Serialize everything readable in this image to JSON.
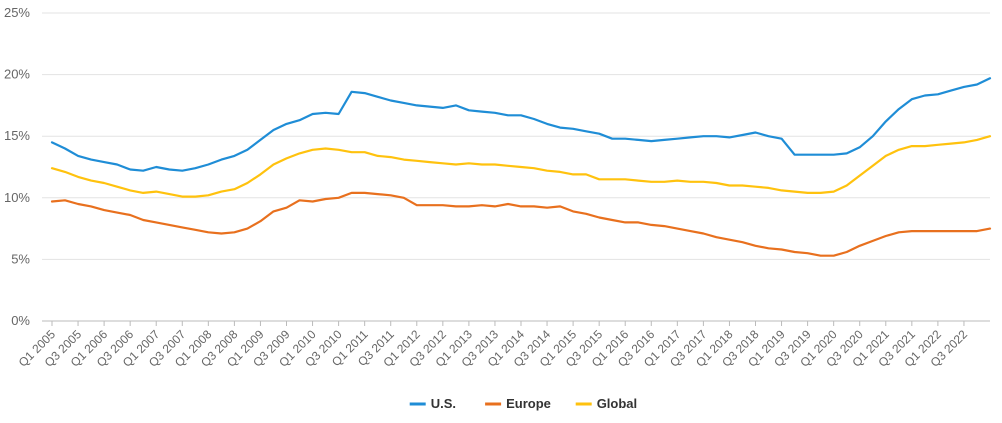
{
  "chart_data": {
    "type": "line",
    "title": "",
    "xlabel": "",
    "ylabel": "",
    "ylim": [
      0,
      25
    ],
    "y_ticks": [
      "0%",
      "5%",
      "10%",
      "15%",
      "20%",
      "25%"
    ],
    "grid": "horizontal",
    "legend_position": "bottom",
    "x": [
      "Q1 2005",
      "Q2 2005",
      "Q3 2005",
      "Q4 2005",
      "Q1 2006",
      "Q2 2006",
      "Q3 2006",
      "Q4 2006",
      "Q1 2007",
      "Q2 2007",
      "Q3 2007",
      "Q4 2007",
      "Q1 2008",
      "Q2 2008",
      "Q3 2008",
      "Q4 2008",
      "Q1 2009",
      "Q2 2009",
      "Q3 2009",
      "Q4 2009",
      "Q1 2010",
      "Q2 2010",
      "Q3 2010",
      "Q4 2010",
      "Q1 2011",
      "Q2 2011",
      "Q3 2011",
      "Q4 2011",
      "Q1 2012",
      "Q2 2012",
      "Q3 2012",
      "Q4 2012",
      "Q1 2013",
      "Q2 2013",
      "Q3 2013",
      "Q4 2013",
      "Q1 2014",
      "Q2 2014",
      "Q3 2014",
      "Q4 2014",
      "Q1 2015",
      "Q2 2015",
      "Q3 2015",
      "Q4 2015",
      "Q1 2016",
      "Q2 2016",
      "Q3 2016",
      "Q4 2016",
      "Q1 2017",
      "Q2 2017",
      "Q3 2017",
      "Q4 2017",
      "Q1 2018",
      "Q2 2018",
      "Q3 2018",
      "Q4 2018",
      "Q1 2019",
      "Q2 2019",
      "Q3 2019",
      "Q4 2019",
      "Q1 2020",
      "Q2 2020",
      "Q3 2020",
      "Q4 2020",
      "Q1 2021",
      "Q2 2021",
      "Q3 2021",
      "Q4 2021",
      "Q1 2022",
      "Q2 2022",
      "Q3 2022",
      "Q4 2022",
      "Q1 2023"
    ],
    "x_tick_labels": [
      "Q1 2005",
      "Q3 2005",
      "Q1 2006",
      "Q3 2006",
      "Q1 2007",
      "Q3 2007",
      "Q1 2008",
      "Q3 2008",
      "Q1 2009",
      "Q3 2009",
      "Q1 2010",
      "Q3 2010",
      "Q1 2011",
      "Q3 2011",
      "Q1 2012",
      "Q3 2012",
      "Q1 2013",
      "Q3 2013",
      "Q1 2014",
      "Q3 2014",
      "Q1 2015",
      "Q3 2015",
      "Q1 2016",
      "Q3 2016",
      "Q1 2017",
      "Q3 2017",
      "Q1 2018",
      "Q3 2018",
      "Q1 2019",
      "Q3 2019",
      "Q1 2020",
      "Q3 2020",
      "Q1 2021",
      "Q3 2021",
      "Q1 2022",
      "Q3 2022"
    ],
    "series": [
      {
        "name": "U.S.",
        "color": "#1f8dd6",
        "values": [
          14.5,
          14.0,
          13.4,
          13.1,
          12.9,
          12.7,
          12.3,
          12.2,
          12.5,
          12.3,
          12.2,
          12.4,
          12.7,
          13.1,
          13.4,
          13.9,
          14.7,
          15.5,
          16.0,
          16.3,
          16.8,
          16.9,
          16.8,
          18.6,
          18.5,
          18.2,
          17.9,
          17.7,
          17.5,
          17.4,
          17.3,
          17.5,
          17.1,
          17.0,
          16.9,
          16.7,
          16.7,
          16.4,
          16.0,
          15.7,
          15.6,
          15.4,
          15.2,
          14.8,
          14.8,
          14.7,
          14.6,
          14.7,
          14.8,
          14.9,
          15.0,
          15.0,
          14.9,
          15.1,
          15.3,
          15.0,
          14.8,
          13.5,
          13.5,
          13.5,
          13.5,
          13.6,
          14.1,
          15.0,
          16.2,
          17.2,
          18.0,
          18.3,
          18.4,
          18.7,
          19.0,
          19.2,
          19.7
        ]
      },
      {
        "name": "Europe",
        "color": "#e8701e",
        "values": [
          9.7,
          9.8,
          9.5,
          9.3,
          9.0,
          8.8,
          8.6,
          8.2,
          8.0,
          7.8,
          7.6,
          7.4,
          7.2,
          7.1,
          7.2,
          7.5,
          8.1,
          8.9,
          9.2,
          9.8,
          9.7,
          9.9,
          10.0,
          10.4,
          10.4,
          10.3,
          10.2,
          10.0,
          9.4,
          9.4,
          9.4,
          9.3,
          9.3,
          9.4,
          9.3,
          9.5,
          9.3,
          9.3,
          9.2,
          9.3,
          8.9,
          8.7,
          8.4,
          8.2,
          8.0,
          8.0,
          7.8,
          7.7,
          7.5,
          7.3,
          7.1,
          6.8,
          6.6,
          6.4,
          6.1,
          5.9,
          5.8,
          5.6,
          5.5,
          5.3,
          5.3,
          5.6,
          6.1,
          6.5,
          6.9,
          7.2,
          7.3,
          7.3,
          7.3,
          7.3,
          7.3,
          7.3,
          7.5
        ]
      },
      {
        "name": "Global",
        "color": "#ffc20e",
        "values": [
          12.4,
          12.1,
          11.7,
          11.4,
          11.2,
          10.9,
          10.6,
          10.4,
          10.5,
          10.3,
          10.1,
          10.1,
          10.2,
          10.5,
          10.7,
          11.2,
          11.9,
          12.7,
          13.2,
          13.6,
          13.9,
          14.0,
          13.9,
          13.7,
          13.7,
          13.4,
          13.3,
          13.1,
          13.0,
          12.9,
          12.8,
          12.7,
          12.8,
          12.7,
          12.7,
          12.6,
          12.5,
          12.4,
          12.2,
          12.1,
          11.9,
          11.9,
          11.5,
          11.5,
          11.5,
          11.4,
          11.3,
          11.3,
          11.4,
          11.3,
          11.3,
          11.2,
          11.0,
          11.0,
          10.9,
          10.8,
          10.6,
          10.5,
          10.4,
          10.4,
          10.5,
          11.0,
          11.8,
          12.6,
          13.4,
          13.9,
          14.2,
          14.2,
          14.3,
          14.4,
          14.5,
          14.7,
          15.0
        ]
      }
    ]
  }
}
